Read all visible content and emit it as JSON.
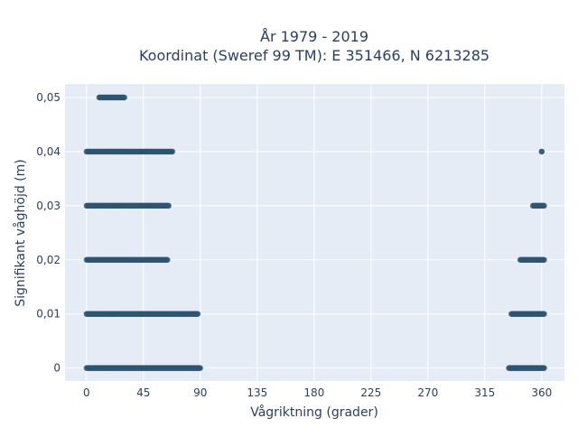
{
  "chart_data": {
    "type": "scatter",
    "title_line1": "År 1979 - 2019",
    "title_line2": "Koordinat (Sweref 99 TM): E 351466, N 6213285",
    "xlabel": "Vågriktning (grader)",
    "ylabel": "Signifikant våghöjd (m)",
    "xlim": [
      -17,
      378
    ],
    "ylim": [
      -0.0024,
      0.0525
    ],
    "xticks": [
      0,
      45,
      90,
      135,
      180,
      225,
      270,
      315,
      360
    ],
    "xtick_labels": [
      "0",
      "45",
      "90",
      "135",
      "180",
      "225",
      "270",
      "315",
      "360"
    ],
    "yticks": [
      0,
      0.01,
      0.02,
      0.03,
      0.04,
      0.05
    ],
    "ytick_labels": [
      "0",
      "0,01",
      "0,02",
      "0,03",
      "0,04",
      "0,05"
    ],
    "grid": true,
    "marker_color": "#2f5470",
    "plot_background": "#e5ecf6",
    "clusters": [
      {
        "y": 0.05,
        "x_from": 10,
        "x_to": 30
      },
      {
        "y": 0.04,
        "x_from": 0,
        "x_to": 68
      },
      {
        "y": 0.04,
        "x_from": 360,
        "x_to": 360
      },
      {
        "y": 0.03,
        "x_from": 0,
        "x_to": 65
      },
      {
        "y": 0.03,
        "x_from": 353,
        "x_to": 362
      },
      {
        "y": 0.02,
        "x_from": 0,
        "x_to": 64
      },
      {
        "y": 0.02,
        "x_from": 343,
        "x_to": 362
      },
      {
        "y": 0.01,
        "x_from": 0,
        "x_to": 88
      },
      {
        "y": 0.01,
        "x_from": 336,
        "x_to": 362
      },
      {
        "y": 0,
        "x_from": 0,
        "x_to": 90
      },
      {
        "y": 0,
        "x_from": 334,
        "x_to": 362
      }
    ]
  }
}
